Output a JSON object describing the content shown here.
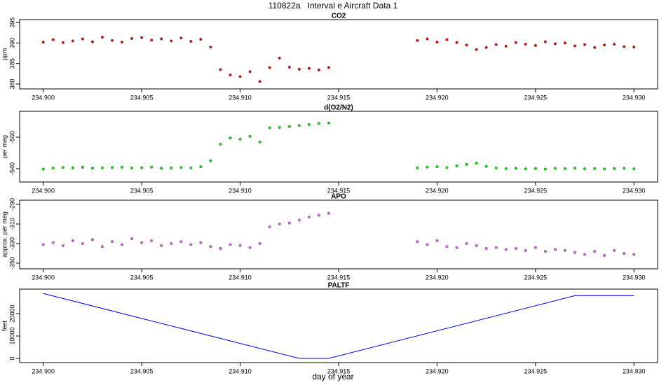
{
  "title": "110822a   Interval e Aircraft Data 1",
  "xlabel": "day of year",
  "chart_data": [
    {
      "type": "scatter",
      "title": "CO2",
      "ylabel": "ppm",
      "color": "#ee0000",
      "xlim": [
        234.8988,
        234.9312
      ],
      "ylim": [
        378.8,
        395.7
      ],
      "xticks": [
        {
          "value": 234.9,
          "label": "234.900"
        },
        {
          "value": 234.905,
          "label": "234.905"
        },
        {
          "value": 234.91,
          "label": "234.910"
        },
        {
          "value": 234.915,
          "label": "234.915"
        },
        {
          "value": 234.92,
          "label": "234.920"
        },
        {
          "value": 234.925,
          "label": "234.925"
        },
        {
          "value": 234.93,
          "label": "234.930"
        }
      ],
      "yticks": [
        380,
        385,
        390,
        395
      ],
      "x": [
        234.9,
        234.9005,
        234.901,
        234.9015,
        234.902,
        234.9025,
        234.903,
        234.9035,
        234.904,
        234.9045,
        234.905,
        234.9055,
        234.906,
        234.9065,
        234.907,
        234.9075,
        234.908,
        234.9085,
        234.909,
        234.9095,
        234.91,
        234.9105,
        234.911,
        234.9115,
        234.912,
        234.9125,
        234.913,
        234.9135,
        234.914,
        234.9145,
        234.919,
        234.9195,
        234.92,
        234.9205,
        234.921,
        234.9215,
        234.922,
        234.9225,
        234.923,
        234.9235,
        234.924,
        234.9245,
        234.925,
        234.9255,
        234.926,
        234.9265,
        234.927,
        234.9275,
        234.928,
        234.9285,
        234.929,
        234.9295,
        234.93
      ],
      "values": [
        390.2,
        390.8,
        390.1,
        390.5,
        391.0,
        390.3,
        391.4,
        390.6,
        390.2,
        391.1,
        391.3,
        390.7,
        391.0,
        390.5,
        391.2,
        390.4,
        390.9,
        389.0,
        383.5,
        382.2,
        381.8,
        383.0,
        380.6,
        384.0,
        386.3,
        384.1,
        383.6,
        383.8,
        383.4,
        384.0,
        390.6,
        391.0,
        390.2,
        390.8,
        390.1,
        389.5,
        388.4,
        388.9,
        389.6,
        389.2,
        390.1,
        389.7,
        389.4,
        390.3,
        389.8,
        390.0,
        389.3,
        389.6,
        388.9,
        389.5,
        389.7,
        389.1,
        389.0
      ]
    },
    {
      "type": "scatter",
      "title": "d(O2/N2)",
      "ylabel": "per meg",
      "color": "#00ee00",
      "xlim": [
        234.8988,
        234.9312
      ],
      "ylim": [
        -556.9,
        -467.1
      ],
      "xticks": [
        {
          "value": 234.9,
          "label": "234.900"
        },
        {
          "value": 234.905,
          "label": "234.905"
        },
        {
          "value": 234.91,
          "label": "234.910"
        },
        {
          "value": 234.915,
          "label": "234.915"
        },
        {
          "value": 234.92,
          "label": "234.920"
        },
        {
          "value": 234.925,
          "label": "234.925"
        },
        {
          "value": 234.93,
          "label": "234.930"
        }
      ],
      "yticks": [
        -540,
        -500
      ],
      "x": [
        234.9,
        234.9005,
        234.901,
        234.9015,
        234.902,
        234.9025,
        234.903,
        234.9035,
        234.904,
        234.9045,
        234.905,
        234.9055,
        234.906,
        234.9065,
        234.907,
        234.9075,
        234.908,
        234.9085,
        234.909,
        234.9095,
        234.91,
        234.9105,
        234.911,
        234.9115,
        234.912,
        234.9125,
        234.913,
        234.9135,
        234.914,
        234.9145,
        234.919,
        234.9195,
        234.92,
        234.9205,
        234.921,
        234.9215,
        234.922,
        234.9225,
        234.923,
        234.9235,
        234.924,
        234.9245,
        234.925,
        234.9255,
        234.926,
        234.9265,
        234.927,
        234.9275,
        234.928,
        234.9285,
        234.929,
        234.9295,
        234.93
      ],
      "values": [
        -540.5,
        -539.2,
        -538.5,
        -539.0,
        -538.2,
        -539.3,
        -539.0,
        -538.6,
        -538.1,
        -539.2,
        -538.8,
        -538.0,
        -539.4,
        -539.1,
        -538.5,
        -539.0,
        -537.5,
        -530.0,
        -509.0,
        -501.0,
        -502.5,
        -499.0,
        -506.0,
        -488.0,
        -487.5,
        -486.5,
        -485.0,
        -484.0,
        -482.5,
        -482.0,
        -539.0,
        -538.0,
        -537.5,
        -538.5,
        -536.5,
        -534.5,
        -533.0,
        -537.0,
        -539.0,
        -540.0,
        -539.5,
        -540.2,
        -539.8,
        -540.5,
        -539.6,
        -540.0,
        -539.3,
        -540.1,
        -539.8,
        -540.4,
        -539.9,
        -539.5,
        -540.2
      ]
    },
    {
      "type": "scatter",
      "title": "APO",
      "ylabel": "approx. per meg",
      "color": "#dd66ee",
      "xlim": [
        234.8988,
        234.9312
      ],
      "ylim": [
        -355.7,
        -285.7
      ],
      "xticks": [
        {
          "value": 234.9,
          "label": "234.900"
        },
        {
          "value": 234.905,
          "label": "234.905"
        },
        {
          "value": 234.91,
          "label": "234.910"
        },
        {
          "value": 234.915,
          "label": "234.915"
        },
        {
          "value": 234.92,
          "label": "234.920"
        },
        {
          "value": 234.925,
          "label": "234.925"
        },
        {
          "value": 234.93,
          "label": "234.930"
        }
      ],
      "yticks": [
        -290,
        -310,
        -330,
        -350
      ],
      "x": [
        234.9,
        234.9005,
        234.901,
        234.9015,
        234.902,
        234.9025,
        234.903,
        234.9035,
        234.904,
        234.9045,
        234.905,
        234.9055,
        234.906,
        234.9065,
        234.907,
        234.9075,
        234.908,
        234.9085,
        234.909,
        234.9095,
        234.91,
        234.9105,
        234.911,
        234.9115,
        234.912,
        234.9125,
        234.913,
        234.9135,
        234.914,
        234.9145,
        234.919,
        234.9195,
        234.92,
        234.9205,
        234.921,
        234.9215,
        234.922,
        234.9225,
        234.923,
        234.9235,
        234.924,
        234.9245,
        234.925,
        234.9255,
        234.926,
        234.9265,
        234.927,
        234.9275,
        234.928,
        234.9285,
        234.929,
        234.9295,
        234.93
      ],
      "values": [
        -331,
        -329,
        -332,
        -327,
        -330,
        -326,
        -333,
        -328,
        -331,
        -325,
        -329,
        -327,
        -332,
        -330,
        -328,
        -331,
        -329,
        -333,
        -335,
        -331,
        -332,
        -334,
        -330,
        -313,
        -310,
        -309,
        -306,
        -303,
        -301,
        -299,
        -328,
        -331,
        -327,
        -333,
        -334,
        -330,
        -332,
        -335,
        -334,
        -336,
        -335,
        -337,
        -334,
        -338,
        -336,
        -337,
        -339,
        -341,
        -338,
        -342,
        -337,
        -340,
        -341
      ]
    },
    {
      "type": "line",
      "title": "PALTF",
      "ylabel": "feet",
      "color": "#0000ee",
      "xlim": [
        234.8988,
        234.9312
      ],
      "ylim": [
        -1875,
        30940
      ],
      "xticks": [
        {
          "value": 234.9,
          "label": "234.900"
        },
        {
          "value": 234.905,
          "label": "234.905"
        },
        {
          "value": 234.91,
          "label": "234.910"
        },
        {
          "value": 234.915,
          "label": "234.915"
        },
        {
          "value": 234.92,
          "label": "234.920"
        },
        {
          "value": 234.925,
          "label": "234.925"
        },
        {
          "value": 234.93,
          "label": "234.930"
        }
      ],
      "yticks": [
        0,
        10000,
        20000
      ],
      "x": [
        234.9,
        234.913,
        234.9145,
        234.927,
        234.93
      ],
      "values": [
        29000,
        0,
        0,
        28000,
        28000
      ]
    }
  ]
}
